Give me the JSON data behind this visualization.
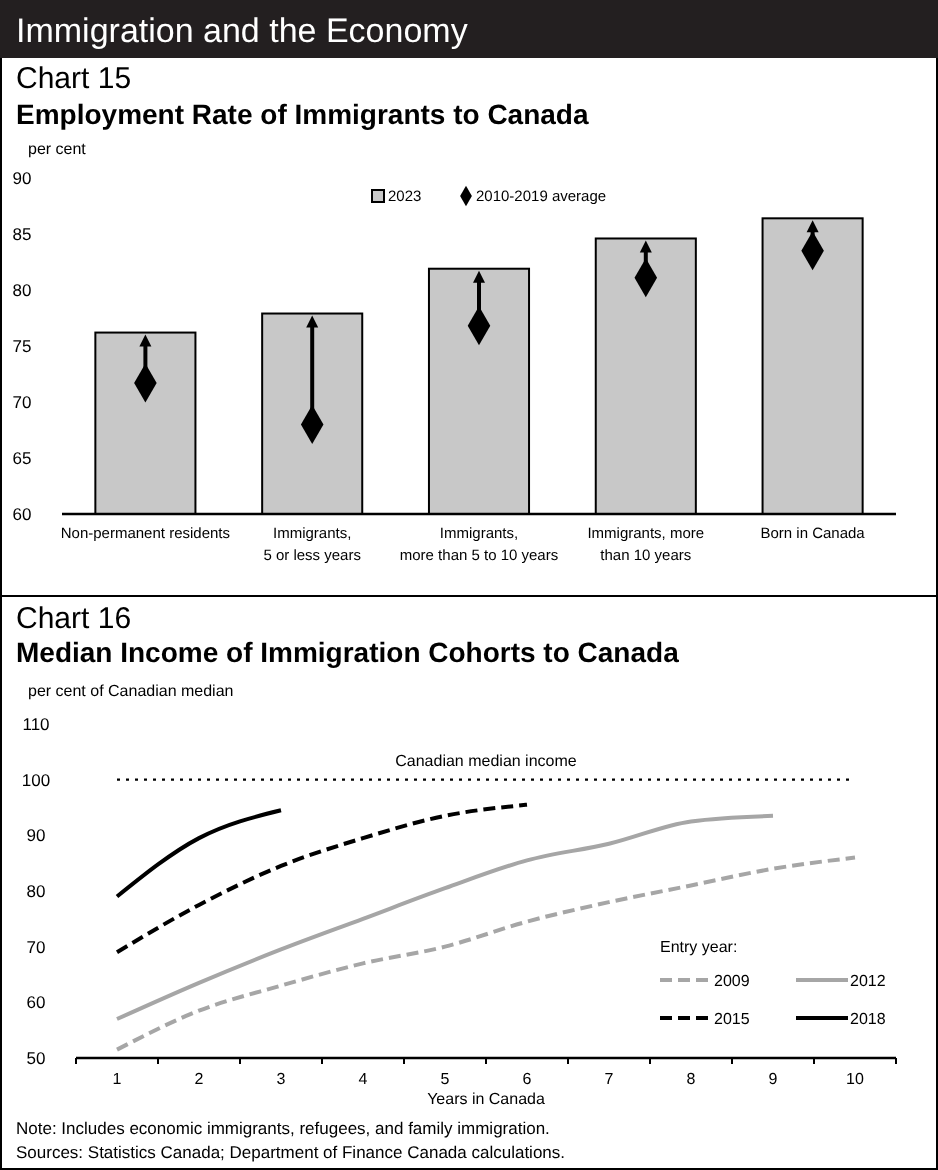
{
  "chart_data": [
    {
      "type": "bar",
      "subtitle": "Chart 15",
      "title": "Employment Rate of Immigrants to Canada",
      "ylabel": "per cent",
      "annotations": [
        "Immigration and the Economy"
      ],
      "categories": [
        "Non-permanent residents",
        "Immigrants,\n5 or less years",
        "Immigrants,\nmore than 5 to 10 years",
        "Immigrants, more\nthan 10 years",
        "Born in Canada"
      ],
      "series": [
        {
          "name": "2023",
          "type": "bar",
          "color": "#c8c8c8",
          "values": [
            76.2,
            77.9,
            81.9,
            84.6,
            86.4
          ]
        },
        {
          "name": "2010-2019 average",
          "type": "scatter",
          "marker": "diamond",
          "color": "#000000",
          "x": [
            "Non-permanent residents",
            "Immigrants,\n5 or less years",
            "Immigrants,\nmore than 5 to 10 years",
            "Immigrants, more\nthan 10 years",
            "Born in Canada"
          ],
          "values": [
            71.7,
            68.0,
            76.8,
            81.1,
            83.5
          ]
        }
      ],
      "ylim": [
        60,
        90
      ],
      "yticks": [
        60,
        65,
        70,
        75,
        80,
        85,
        90
      ],
      "grid": false,
      "legend": "top"
    },
    {
      "type": "line",
      "subtitle": "Chart 16",
      "title": "Median Income of Immigration Cohorts to Canada",
      "ylabel": "per cent of Canadian median",
      "xlabel": "Years in Canada",
      "legend_title": "Entry year:",
      "annotations": [
        "Note: Includes economic immigrants, refugees, and family immigration.",
        "Sources: Statistics Canada; Department of Finance Canada calculations."
      ],
      "categories": [
        "1",
        "2",
        "3",
        "4",
        "5",
        "6",
        "7",
        "8",
        "9",
        "10"
      ],
      "series": [
        {
          "name": "2009",
          "color": "#a6a6a6",
          "line_style": "dashed",
          "values": [
            51.5,
            58.5,
            63,
            67,
            70,
            74.5,
            78,
            81,
            84,
            86
          ]
        },
        {
          "name": "2012",
          "color": "#a6a6a6",
          "line_style": "solid",
          "values": [
            57,
            63.5,
            69.5,
            75,
            80.5,
            85.5,
            88.5,
            92.5,
            93.5,
            null
          ]
        },
        {
          "name": "2015",
          "color": "#000000",
          "line_style": "dashed",
          "values": [
            69,
            77.5,
            84.5,
            89.5,
            93.5,
            95.5,
            null,
            null,
            null,
            null
          ]
        },
        {
          "name": "2018",
          "color": "#000000",
          "line_style": "solid",
          "values": [
            79,
            89.5,
            94.5,
            null,
            null,
            null,
            null,
            null,
            null,
            null
          ]
        }
      ],
      "ref_lines": [
        {
          "axis": "y",
          "value": 100,
          "label": "Canadian median income",
          "color": "#000000",
          "line_style": "dotted"
        }
      ],
      "ylim": [
        50,
        110
      ],
      "yticks": [
        50,
        60,
        70,
        80,
        90,
        100,
        110
      ],
      "grid": false,
      "legend": "bottom right"
    }
  ]
}
